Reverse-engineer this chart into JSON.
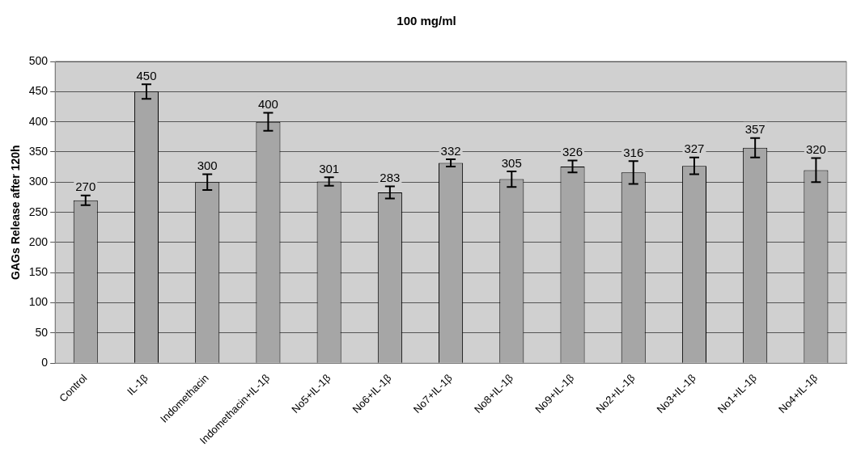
{
  "chart_data": {
    "type": "bar",
    "title": "100 mg/ml",
    "ylabel": "GAGs Release after 120h",
    "categories": [
      "Control",
      "IL-1β",
      "Indomethacin",
      "Indomethacin+IL-1β",
      "No5+IL-1β",
      "No6+IL-1β",
      "No7+IL-1β",
      "No8+IL-1β",
      "No9+IL-1β",
      "No2+IL-1β",
      "No3+IL-1β",
      "No1+IL-1β",
      "No4+IL-1β"
    ],
    "values": [
      270,
      450,
      300,
      400,
      301,
      283,
      332,
      305,
      326,
      316,
      327,
      357,
      320
    ],
    "errors": [
      8,
      12,
      13,
      15,
      7,
      10,
      6,
      13,
      10,
      19,
      14,
      16,
      20
    ],
    "color": "#a6a6a6",
    "ylim": [
      0,
      500
    ],
    "yticks": [
      0,
      50,
      100,
      150,
      200,
      250,
      300,
      350,
      400,
      450,
      500
    ],
    "grid": "y",
    "data_labels": true,
    "legend": false
  }
}
